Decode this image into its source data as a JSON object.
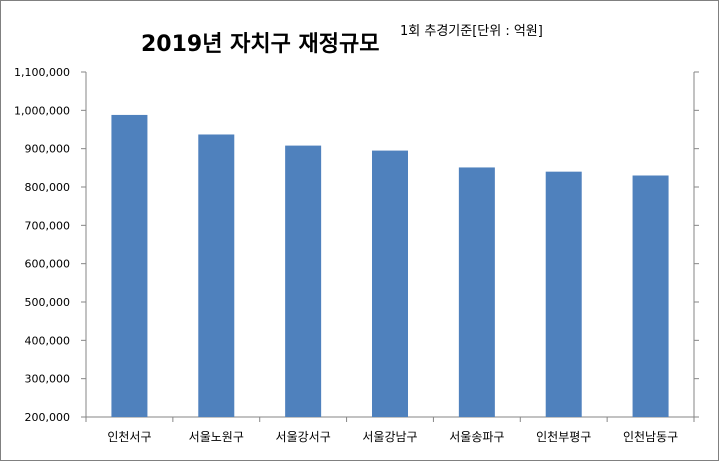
{
  "chart_data": {
    "type": "bar",
    "title": "2019년 자치구  재정규모",
    "subtitle": "1회 추경기준[단위 : 억원]",
    "xlabel": "",
    "ylabel": "",
    "categories": [
      "인천서구",
      "서울노원구",
      "서울강서구",
      "서울강남구",
      "서울송파구",
      "인천부평구",
      "인천남동구"
    ],
    "values": [
      988000,
      937000,
      908000,
      895000,
      851000,
      840000,
      830000
    ],
    "ylim": [
      200000,
      1100000
    ],
    "yticks": [
      200000,
      300000,
      400000,
      500000,
      600000,
      700000,
      800000,
      900000,
      1000000,
      1100000
    ],
    "ytick_labels": [
      "200,000",
      "300,000",
      "400,000",
      "500,000",
      "600,000",
      "700,000",
      "800,000",
      "900,000",
      "1,000,000",
      "1,100,000"
    ],
    "grid": false,
    "legend": "none",
    "bar_color": "#4F81BD"
  }
}
